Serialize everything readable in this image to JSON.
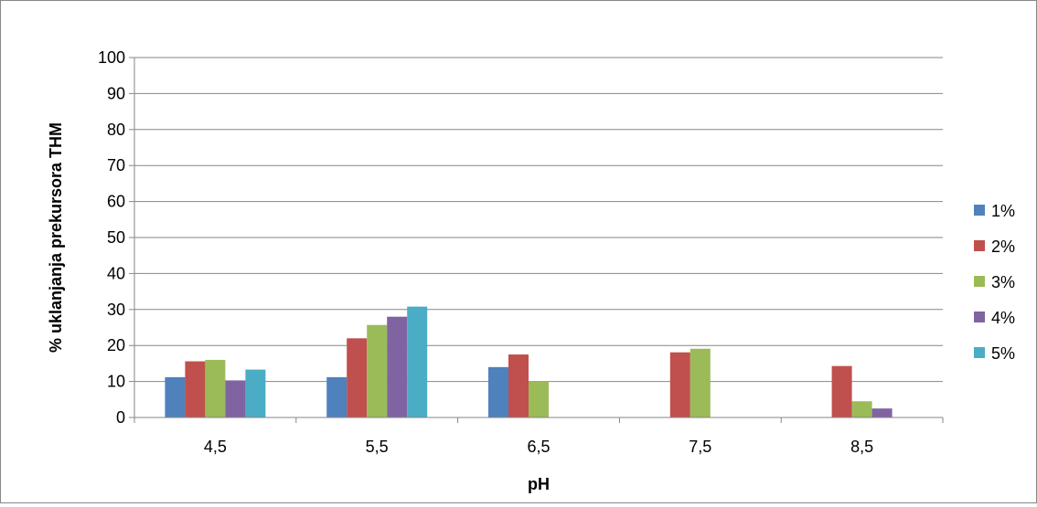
{
  "chart_data": {
    "type": "bar",
    "title": "",
    "xlabel": "pH",
    "ylabel": "% uklanjanja prekursora THM",
    "categories": [
      "4,5",
      "5,5",
      "6,5",
      "7,5",
      "8,5"
    ],
    "ylim": [
      0,
      100
    ],
    "yticks": [
      0,
      10,
      20,
      30,
      40,
      50,
      60,
      70,
      80,
      90,
      100
    ],
    "grid": true,
    "legend_position": "right",
    "series": [
      {
        "name": "1%",
        "color": "#4F81BD",
        "values": [
          11.2,
          11.2,
          14.0,
          0,
          0
        ]
      },
      {
        "name": "2%",
        "color": "#C0504D",
        "values": [
          15.6,
          22.0,
          17.5,
          18.1,
          14.3
        ]
      },
      {
        "name": "3%",
        "color": "#9BBB59",
        "values": [
          16.0,
          25.7,
          10.0,
          19.1,
          4.5
        ]
      },
      {
        "name": "4%",
        "color": "#8064A2",
        "values": [
          10.3,
          28.0,
          0,
          0,
          2.5
        ]
      },
      {
        "name": "5%",
        "color": "#4BACC6",
        "values": [
          13.3,
          30.8,
          0,
          0,
          0
        ]
      }
    ]
  }
}
